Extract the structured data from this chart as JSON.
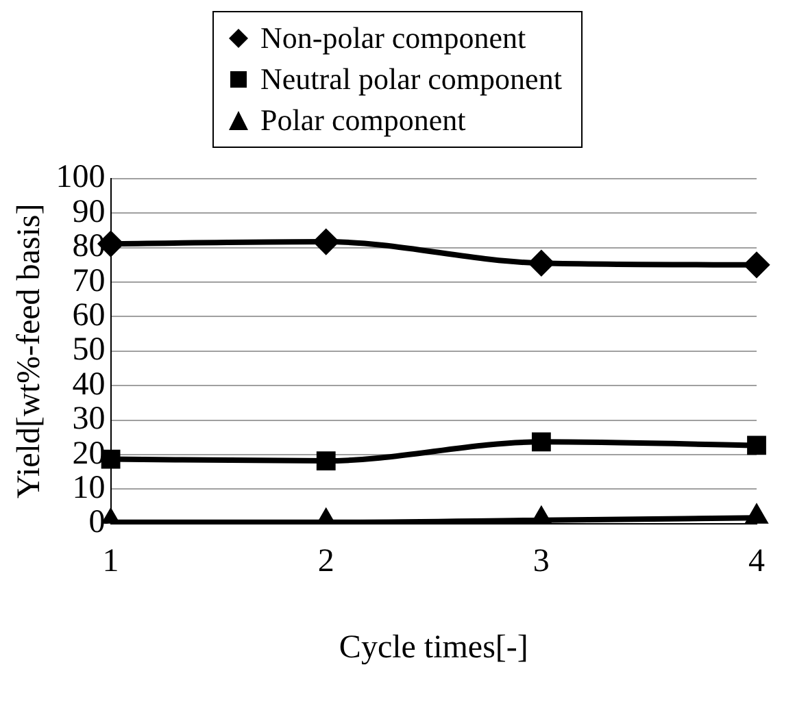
{
  "chart_data": {
    "type": "line",
    "xlabel": "Cycle times[-]",
    "ylabel": "Yield[wt%-feed basis]",
    "categories": [
      "1",
      "2",
      "3",
      "4"
    ],
    "ylim": [
      0,
      100
    ],
    "yticks": [
      0,
      10,
      20,
      30,
      40,
      50,
      60,
      70,
      80,
      90,
      100
    ],
    "grid": "y",
    "legend": "top",
    "line_style": "solid",
    "series": [
      {
        "name": "Non-polar component",
        "color": "#000000",
        "marker": "diamond",
        "values": [
          81.1,
          81.7,
          75.5,
          75
        ]
      },
      {
        "name": "Neutral polar component",
        "color": "#000000",
        "marker": "square",
        "values": [
          18.7,
          18.2,
          23.7,
          22.7
        ]
      },
      {
        "name": "Polar component",
        "color": "#000000",
        "marker": "triangle",
        "values": [
          0.4,
          0.4,
          1,
          1.7
        ]
      }
    ]
  }
}
